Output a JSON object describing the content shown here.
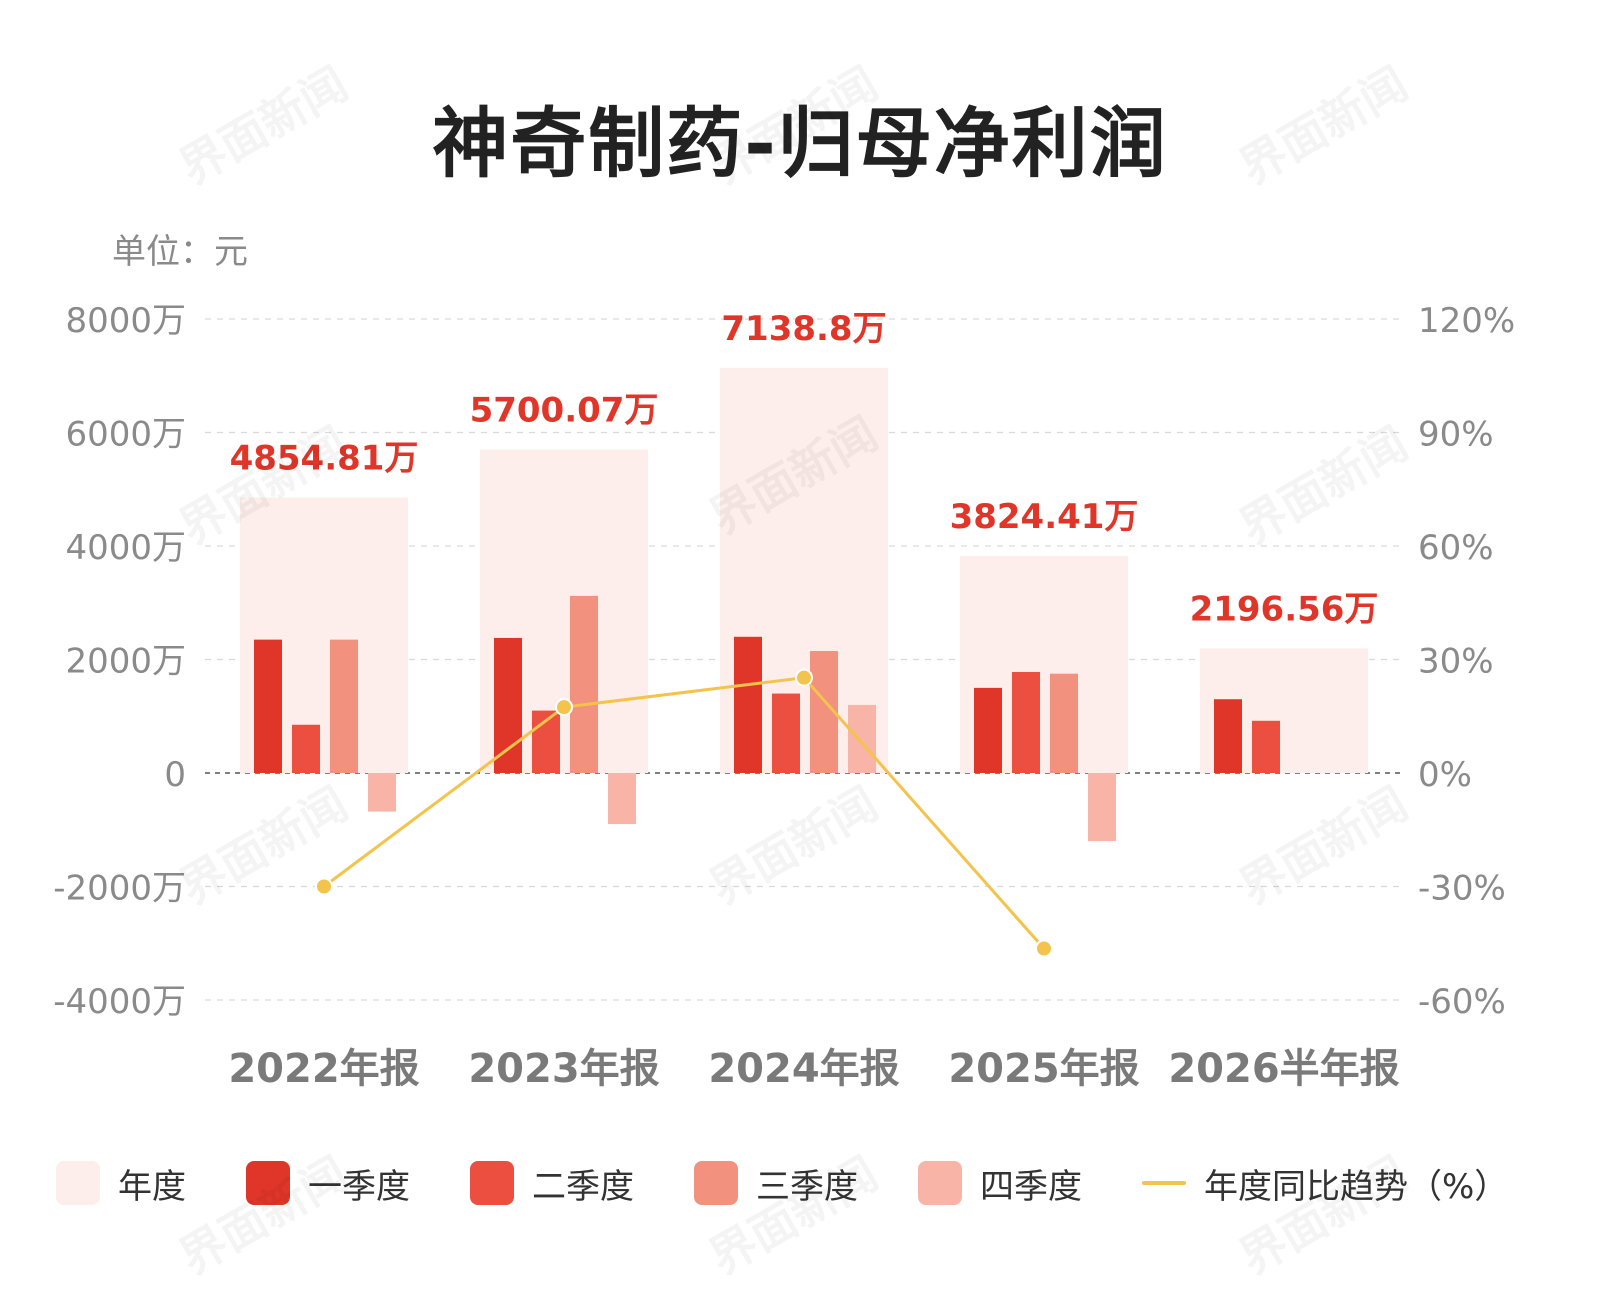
{
  "title": "神奇制药-归母净利润",
  "unit_label": "单位：元",
  "watermark_text": "界面新闻",
  "chart_data": {
    "type": "bar",
    "categories": [
      "2022年报",
      "2023年报",
      "2024年报",
      "2025年报",
      "2026半年报"
    ],
    "annual_labels": [
      "4854.81万",
      "5700.07万",
      "7138.8万",
      "3824.41万",
      "2196.56万"
    ],
    "series": [
      {
        "name": "年度",
        "color": "#fdeeeb",
        "values": [
          4854.81,
          5700.07,
          7138.8,
          3824.41,
          2196.56
        ]
      },
      {
        "name": "一季度",
        "color": "#e0362a",
        "values": [
          2350,
          2380,
          2400,
          1500,
          1300
        ]
      },
      {
        "name": "二季度",
        "color": "#ec4e40",
        "values": [
          850,
          1100,
          1400,
          1780,
          920
        ]
      },
      {
        "name": "三季度",
        "color": "#f1917e",
        "values": [
          2350,
          3120,
          2150,
          1750,
          null
        ]
      },
      {
        "name": "四季度",
        "color": "#f8b4a6",
        "values": [
          -680,
          -900,
          1200,
          -1200,
          null
        ]
      }
    ],
    "yoy_series": {
      "name": "年度同比趋势（%）",
      "color": "#f4c34c",
      "values": [
        -30,
        17.4,
        25.2,
        -46.4
      ]
    },
    "y_left": {
      "min": -4000,
      "max": 8000,
      "ticks": [
        "8000万",
        "6000万",
        "4000万",
        "2000万",
        "0",
        "-2000万",
        "-4000万"
      ]
    },
    "y_right": {
      "min": -60,
      "max": 120,
      "ticks": [
        "120%",
        "90%",
        "60%",
        "30%",
        "0%",
        "-30%",
        "-60%"
      ]
    },
    "grid": "dashed",
    "legend_position": "bottom"
  }
}
